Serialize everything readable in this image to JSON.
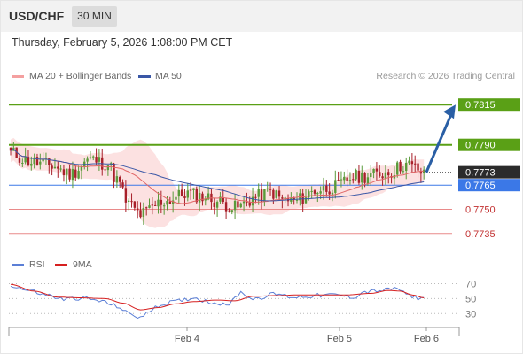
{
  "header": {
    "symbol": "USD/CHF",
    "timeframe": "30 MIN"
  },
  "datetime": "Thursday, February 5, 2026 1:08:00 PM CET",
  "legend": {
    "ma20_label": "MA 20 + Bollinger Bands",
    "ma50_label": "MA 50",
    "credit": "Research © 2026 Trading Central",
    "rsi_label": "RSI",
    "rsi_ma_label": "9MA"
  },
  "colors": {
    "up_candle": "#5a9a3a",
    "down_candle": "#a8202a",
    "ma20": "#e06666",
    "ma50": "#3a57a6",
    "bollinger_fill": "#fbd7d7",
    "resistance": "#5aa016",
    "pivot": "#3b78e7",
    "support": "#e98a8a",
    "arrow": "#2a5fa5",
    "rsi": "#5b7fd6",
    "rsi_ma": "#d62020"
  },
  "chart_data": [
    {
      "type": "candlestick",
      "title": "USD/CHF 30 MIN",
      "ylim": [
        0.7725,
        0.7825
      ],
      "x_ticks": [
        "Feb 4",
        "Feb 5",
        "Feb 6"
      ],
      "levels": [
        {
          "kind": "resistance",
          "value": 0.7815,
          "label": "0.7815"
        },
        {
          "kind": "resistance",
          "value": 0.779,
          "label": "0.7790"
        },
        {
          "kind": "current",
          "value": 0.7773,
          "label": "0.7773"
        },
        {
          "kind": "pivot",
          "value": 0.7765,
          "label": "0.7765"
        },
        {
          "kind": "support",
          "value": 0.775,
          "label": "0.7750"
        },
        {
          "kind": "support",
          "value": 0.7735,
          "label": "0.7735"
        }
      ],
      "forecast_arrow": {
        "from": 0.7773,
        "to": 0.7815
      },
      "close_anchors": [
        [
          0,
          0.7785
        ],
        [
          6,
          0.778
        ],
        [
          14,
          0.7777
        ],
        [
          20,
          0.7772
        ],
        [
          27,
          0.7781
        ],
        [
          33,
          0.7778
        ],
        [
          36,
          0.7768
        ],
        [
          40,
          0.7753
        ],
        [
          44,
          0.7747
        ],
        [
          52,
          0.7755
        ],
        [
          60,
          0.776
        ],
        [
          65,
          0.7758
        ],
        [
          70,
          0.7755
        ],
        [
          76,
          0.7751
        ],
        [
          84,
          0.7758
        ],
        [
          88,
          0.7761
        ],
        [
          92,
          0.7756
        ],
        [
          96,
          0.7755
        ],
        [
          104,
          0.7762
        ],
        [
          110,
          0.7764
        ],
        [
          116,
          0.777
        ],
        [
          122,
          0.7771
        ],
        [
          128,
          0.7773
        ],
        [
          134,
          0.7778
        ],
        [
          138,
          0.7775
        ],
        [
          140,
          0.7771
        ]
      ]
    },
    {
      "type": "line",
      "title": "RSI",
      "ylim": [
        15,
        80
      ],
      "y_ticks": [
        70,
        50,
        30
      ],
      "x_ticks": [
        "Feb 4",
        "Feb 5",
        "Feb 6"
      ],
      "series": [
        {
          "name": "RSI",
          "anchors": [
            [
              0,
              68
            ],
            [
              6,
              61
            ],
            [
              12,
              55
            ],
            [
              18,
              49
            ],
            [
              24,
              51
            ],
            [
              30,
              47
            ],
            [
              36,
              40
            ],
            [
              40,
              30
            ],
            [
              44,
              25
            ],
            [
              50,
              41
            ],
            [
              56,
              46
            ],
            [
              62,
              51
            ],
            [
              68,
              45
            ],
            [
              74,
              43
            ],
            [
              78,
              58
            ],
            [
              82,
              50
            ],
            [
              90,
              56
            ],
            [
              96,
              52
            ],
            [
              104,
              54
            ],
            [
              110,
              55
            ],
            [
              116,
              52
            ],
            [
              120,
              59
            ],
            [
              126,
              61
            ],
            [
              131,
              64
            ],
            [
              134,
              55
            ],
            [
              138,
              51
            ],
            [
              140,
              51
            ]
          ]
        },
        {
          "name": "9MA",
          "anchors": [
            [
              0,
              69
            ],
            [
              8,
              60
            ],
            [
              16,
              52
            ],
            [
              24,
              51
            ],
            [
              32,
              50
            ],
            [
              38,
              44
            ],
            [
              44,
              35
            ],
            [
              50,
              38
            ],
            [
              56,
              43
            ],
            [
              62,
              46
            ],
            [
              70,
              48
            ],
            [
              76,
              47
            ],
            [
              82,
              53
            ],
            [
              90,
              54
            ],
            [
              98,
              55
            ],
            [
              106,
              55
            ],
            [
              114,
              55
            ],
            [
              122,
              57
            ],
            [
              128,
              61
            ],
            [
              132,
              60
            ],
            [
              136,
              55
            ],
            [
              140,
              51
            ]
          ]
        }
      ]
    }
  ]
}
